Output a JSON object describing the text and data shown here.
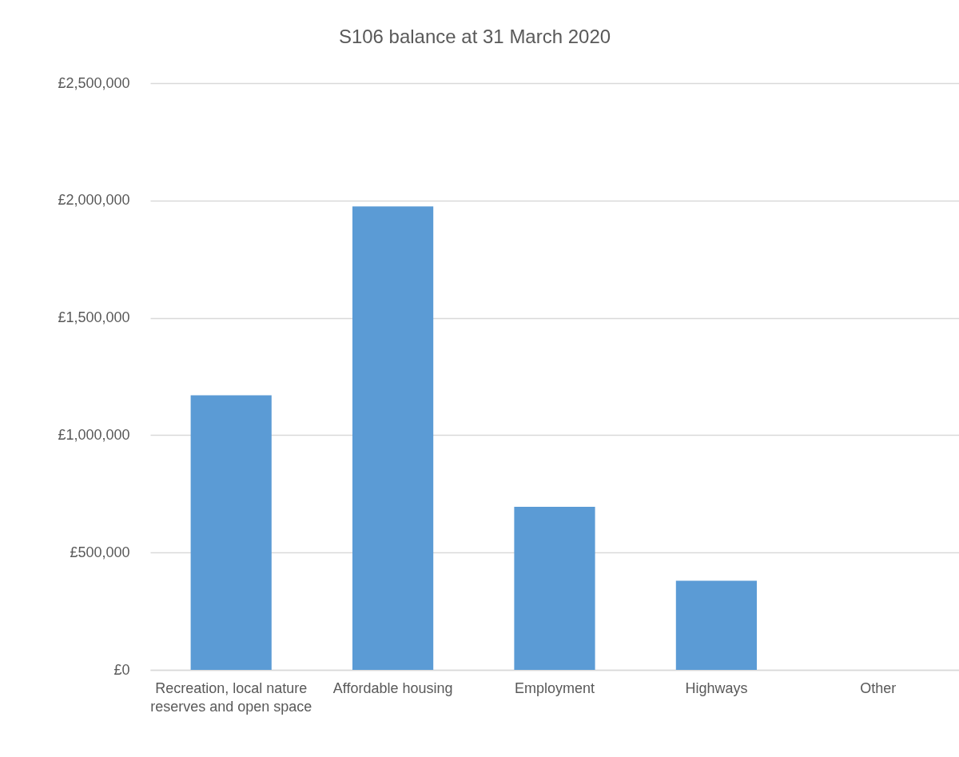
{
  "chart_data": {
    "type": "bar",
    "title": "S106 balance at 31 March 2020",
    "categories": [
      "Recreation, local nature reserves and open space",
      "Affordable housing",
      "Employment",
      "Highways",
      "Other"
    ],
    "values": [
      1170000,
      1975000,
      695000,
      380000,
      0
    ],
    "color": "#5b9bd5",
    "ylim": [
      0,
      2500000
    ],
    "yticks": [
      {
        "value": 0,
        "label": "£0"
      },
      {
        "value": 500000,
        "label": "£500,000"
      },
      {
        "value": 1000000,
        "label": "£1,000,000"
      },
      {
        "value": 1500000,
        "label": "£1,500,000"
      },
      {
        "value": 2000000,
        "label": "£2,000,000"
      },
      {
        "value": 2500000,
        "label": "£2,500,000"
      }
    ],
    "grid": "y"
  }
}
